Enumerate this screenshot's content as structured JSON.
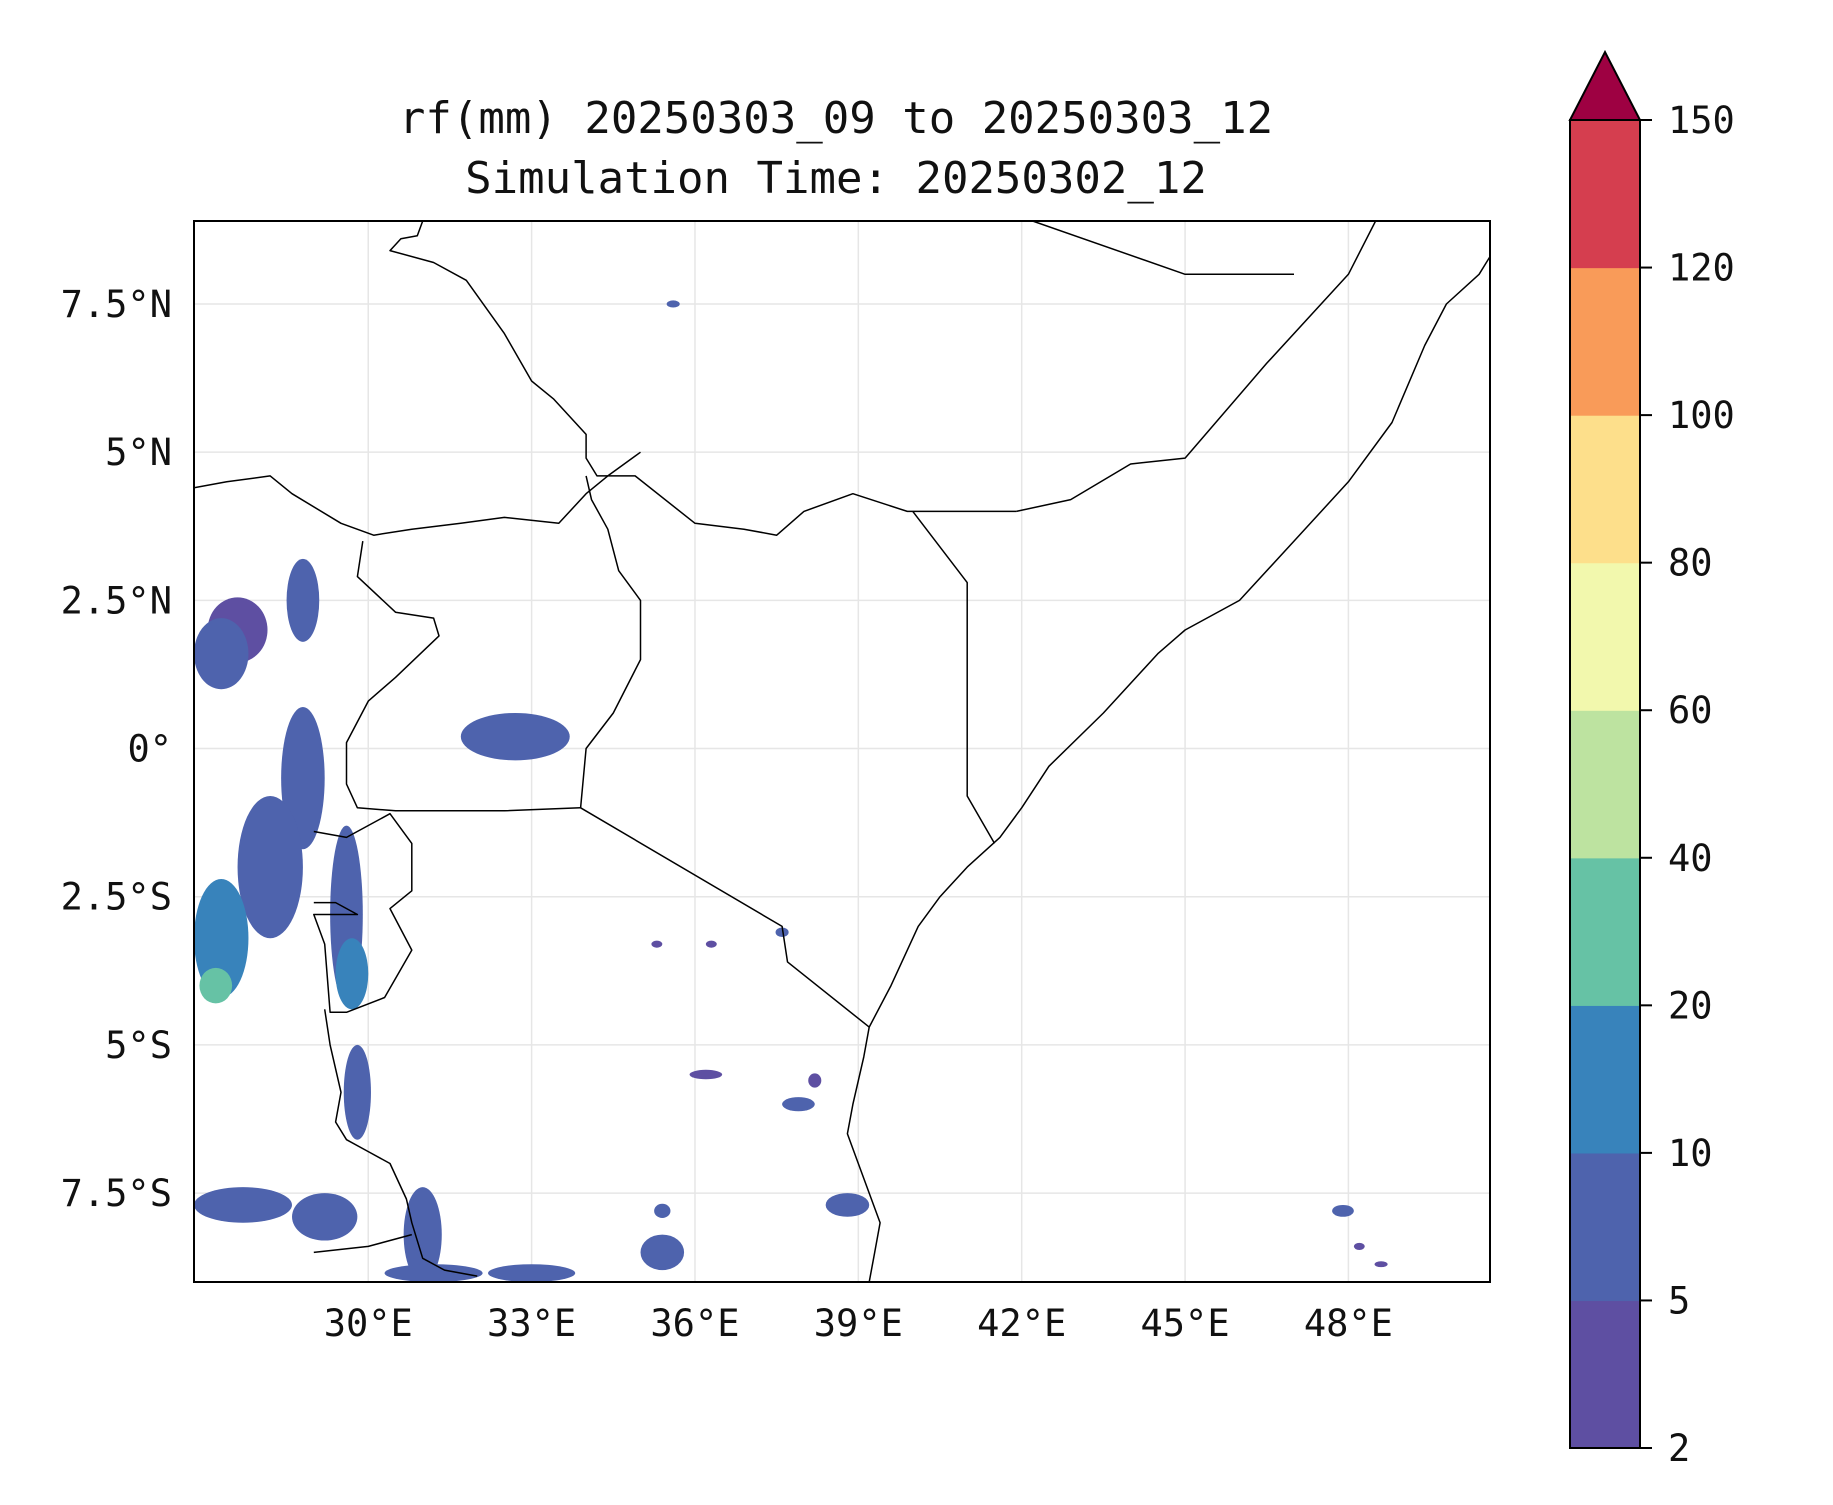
{
  "title": {
    "line1": "rf(mm) 20250303_09 to 20250303_12",
    "line2": "Simulation Time: 20250302_12"
  },
  "map": {
    "lon_range": [
      26.8,
      50.6
    ],
    "lat_range": [
      -9.0,
      8.9
    ],
    "grid": true,
    "x_ticks": [
      {
        "value": 30,
        "label": "30°E"
      },
      {
        "value": 33,
        "label": "33°E"
      },
      {
        "value": 36,
        "label": "36°E"
      },
      {
        "value": 39,
        "label": "39°E"
      },
      {
        "value": 42,
        "label": "42°E"
      },
      {
        "value": 45,
        "label": "45°E"
      },
      {
        "value": 48,
        "label": "48°E"
      }
    ],
    "y_ticks": [
      {
        "value": 7.5,
        "label": "7.5°N"
      },
      {
        "value": 5,
        "label": "5°N"
      },
      {
        "value": 2.5,
        "label": "2.5°N"
      },
      {
        "value": 0,
        "label": "0°"
      },
      {
        "value": -2.5,
        "label": "2.5°S"
      },
      {
        "value": -5,
        "label": "5°S"
      },
      {
        "value": -7.5,
        "label": "7.5°S"
      }
    ]
  },
  "colorbar": {
    "extend": "max",
    "extend_color": "#9e0142",
    "bins": [
      {
        "lo": 2,
        "hi": 5,
        "color": "#5e4fa2"
      },
      {
        "lo": 5,
        "hi": 10,
        "color": "#4e63ad"
      },
      {
        "lo": 10,
        "hi": 20,
        "color": "#3883bb"
      },
      {
        "lo": 20,
        "hi": 40,
        "color": "#66c2a5"
      },
      {
        "lo": 40,
        "hi": 60,
        "color": "#bde3a0"
      },
      {
        "lo": 60,
        "hi": 80,
        "color": "#f2f8ad"
      },
      {
        "lo": 80,
        "hi": 100,
        "color": "#fddf8b"
      },
      {
        "lo": 100,
        "hi": 120,
        "color": "#f99b59"
      },
      {
        "lo": 120,
        "hi": 150,
        "color": "#d53e4f"
      }
    ],
    "tick_labels": [
      "2",
      "5",
      "10",
      "20",
      "40",
      "60",
      "80",
      "100",
      "120",
      "150"
    ]
  },
  "borders": [
    {
      "id": "border-sudan-south-sudan",
      "points": [
        [
          31.0,
          8.9
        ],
        [
          30.9,
          8.65
        ],
        [
          30.6,
          8.6
        ],
        [
          30.4,
          8.4
        ],
        [
          31.2,
          8.2
        ],
        [
          31.8,
          7.9
        ],
        [
          32.5,
          7.0
        ],
        [
          33.0,
          6.2
        ],
        [
          33.4,
          5.9
        ],
        [
          33.8,
          5.5
        ],
        [
          34.0,
          5.3
        ],
        [
          34.0,
          4.9
        ],
        [
          34.2,
          4.6
        ],
        [
          34.9,
          4.6
        ],
        [
          36.0,
          3.8
        ],
        [
          36.9,
          3.7
        ],
        [
          37.5,
          3.6
        ],
        [
          38.0,
          4.0
        ],
        [
          38.9,
          4.3
        ],
        [
          39.9,
          4.0
        ],
        [
          40.9,
          4.0
        ],
        [
          41.9,
          4.0
        ]
      ]
    },
    {
      "id": "border-south-sudan-uganda",
      "points": [
        [
          26.8,
          4.4
        ],
        [
          27.4,
          4.5
        ],
        [
          28.2,
          4.6
        ],
        [
          28.6,
          4.3
        ],
        [
          29.5,
          3.8
        ],
        [
          30.1,
          3.6
        ],
        [
          30.8,
          3.7
        ],
        [
          31.7,
          3.8
        ],
        [
          32.5,
          3.9
        ],
        [
          33.5,
          3.8
        ],
        [
          34.0,
          4.3
        ],
        [
          34.4,
          4.6
        ],
        [
          35.0,
          5.0
        ]
      ]
    },
    {
      "id": "border-drc-uganda",
      "points": [
        [
          29.9,
          3.5
        ],
        [
          29.8,
          2.9
        ],
        [
          30.5,
          2.3
        ],
        [
          31.2,
          2.2
        ],
        [
          31.3,
          1.9
        ],
        [
          30.5,
          1.2
        ],
        [
          30.0,
          0.8
        ],
        [
          29.6,
          0.1
        ],
        [
          29.6,
          -0.6
        ],
        [
          29.8,
          -1.0
        ],
        [
          30.5,
          -1.05
        ],
        [
          31.4,
          -1.05
        ],
        [
          32.5,
          -1.05
        ],
        [
          33.9,
          -1.0
        ]
      ]
    },
    {
      "id": "border-uganda-kenya",
      "points": [
        [
          33.9,
          -1.0
        ],
        [
          34.0,
          0.0
        ],
        [
          34.5,
          0.6
        ],
        [
          35.0,
          1.5
        ],
        [
          35.0,
          2.5
        ],
        [
          34.6,
          3.0
        ],
        [
          34.4,
          3.7
        ],
        [
          34.1,
          4.2
        ],
        [
          34.0,
          4.6
        ]
      ]
    },
    {
      "id": "border-kenya-tanzania",
      "points": [
        [
          33.9,
          -1.0
        ],
        [
          37.6,
          -3.0
        ],
        [
          37.7,
          -3.6
        ],
        [
          39.2,
          -4.7
        ]
      ]
    },
    {
      "id": "border-kenya-somalia",
      "points": [
        [
          40.0,
          4.0
        ],
        [
          41.0,
          2.8
        ],
        [
          41.0,
          1.0
        ],
        [
          41.0,
          -0.8
        ],
        [
          41.5,
          -1.6
        ]
      ]
    },
    {
      "id": "border-somalia-ethiopia",
      "points": [
        [
          41.9,
          4.0
        ],
        [
          42.9,
          4.2
        ],
        [
          44.0,
          4.8
        ],
        [
          45.0,
          4.9
        ],
        [
          46.5,
          6.5
        ],
        [
          48.0,
          8.0
        ],
        [
          48.5,
          8.9
        ]
      ]
    },
    {
      "id": "border-ethiopia-somaliland",
      "points": [
        [
          42.2,
          8.9
        ],
        [
          45.0,
          8.0
        ],
        [
          46.0,
          8.0
        ],
        [
          47.0,
          8.0
        ]
      ]
    },
    {
      "id": "border-rwanda-burundi",
      "points": [
        [
          29.0,
          -1.4
        ],
        [
          29.6,
          -1.5
        ],
        [
          30.4,
          -1.1
        ],
        [
          30.8,
          -1.6
        ],
        [
          30.8,
          -2.4
        ],
        [
          30.4,
          -2.7
        ],
        [
          30.8,
          -3.4
        ],
        [
          30.3,
          -4.2
        ],
        [
          29.6,
          -4.45
        ],
        [
          29.3,
          -4.45
        ],
        [
          29.2,
          -3.3
        ],
        [
          29.0,
          -2.8
        ],
        [
          29.4,
          -2.8
        ],
        [
          29.8,
          -2.8
        ],
        [
          29.4,
          -2.6
        ],
        [
          29.0,
          -2.6
        ]
      ]
    },
    {
      "id": "border-lake-tanganyika",
      "points": [
        [
          29.2,
          -4.4
        ],
        [
          29.3,
          -5.0
        ],
        [
          29.5,
          -5.8
        ],
        [
          29.4,
          -6.3
        ],
        [
          29.6,
          -6.6
        ],
        [
          30.0,
          -6.8
        ],
        [
          30.4,
          -7.0
        ],
        [
          30.7,
          -7.6
        ],
        [
          30.8,
          -8.0
        ],
        [
          31.0,
          -8.6
        ],
        [
          31.4,
          -8.8
        ],
        [
          32.0,
          -8.9
        ]
      ]
    },
    {
      "id": "border-tanzania-zambia",
      "points": [
        [
          29.0,
          -8.5
        ],
        [
          30.0,
          -8.4
        ],
        [
          30.8,
          -8.2
        ]
      ]
    },
    {
      "id": "coastline-east",
      "points": [
        [
          39.2,
          -9.0
        ],
        [
          39.3,
          -8.5
        ],
        [
          39.4,
          -8.0
        ],
        [
          39.2,
          -7.5
        ],
        [
          39.0,
          -7.0
        ],
        [
          38.8,
          -6.5
        ],
        [
          38.9,
          -6.0
        ],
        [
          39.1,
          -5.2
        ],
        [
          39.2,
          -4.7
        ],
        [
          39.6,
          -4.0
        ],
        [
          40.1,
          -3.0
        ],
        [
          40.5,
          -2.5
        ],
        [
          41.0,
          -2.0
        ],
        [
          41.6,
          -1.5
        ],
        [
          42.0,
          -1.0
        ],
        [
          42.5,
          -0.3
        ],
        [
          43.5,
          0.6
        ],
        [
          44.5,
          1.6
        ],
        [
          45.0,
          2.0
        ],
        [
          46.0,
          2.5
        ],
        [
          47.0,
          3.5
        ],
        [
          48.0,
          4.5
        ],
        [
          48.8,
          5.5
        ],
        [
          49.4,
          6.8
        ],
        [
          49.8,
          7.5
        ],
        [
          50.4,
          8.0
        ],
        [
          50.6,
          8.3
        ]
      ]
    }
  ],
  "rain_patches": [
    {
      "id": "rain-w-1",
      "lon": 27.6,
      "lat": 2.0,
      "rx": 0.55,
      "ry": 0.55,
      "bin": 0
    },
    {
      "id": "rain-w-2",
      "lon": 28.8,
      "lat": 2.5,
      "rx": 0.3,
      "ry": 0.7,
      "bin": 1
    },
    {
      "id": "rain-w-3",
      "lon": 27.3,
      "lat": 1.6,
      "rx": 0.5,
      "ry": 0.6,
      "bin": 1
    },
    {
      "id": "rain-w-4",
      "lon": 28.8,
      "lat": -0.5,
      "rx": 0.4,
      "ry": 1.2,
      "bin": 1
    },
    {
      "id": "rain-w-5",
      "lon": 28.2,
      "lat": -2.0,
      "rx": 0.6,
      "ry": 1.2,
      "bin": 1
    },
    {
      "id": "rain-w-6",
      "lon": 27.3,
      "lat": -3.2,
      "rx": 0.5,
      "ry": 1.0,
      "bin": 2
    },
    {
      "id": "rain-w-7",
      "lon": 29.6,
      "lat": -2.8,
      "rx": 0.3,
      "ry": 1.5,
      "bin": 1
    },
    {
      "id": "rain-w-8",
      "lon": 29.7,
      "lat": -3.8,
      "rx": 0.3,
      "ry": 0.6,
      "bin": 2
    },
    {
      "id": "rain-w-9",
      "lon": 27.2,
      "lat": -4.0,
      "rx": 0.3,
      "ry": 0.3,
      "bin": 3
    },
    {
      "id": "rain-lake-victoria",
      "lon": 32.7,
      "lat": 0.2,
      "rx": 1.0,
      "ry": 0.4,
      "bin": 1
    },
    {
      "id": "rain-tanganyika-1",
      "lon": 29.8,
      "lat": -5.8,
      "rx": 0.25,
      "ry": 0.8,
      "bin": 1
    },
    {
      "id": "rain-tanganyika-2",
      "lon": 31.0,
      "lat": -8.2,
      "rx": 0.35,
      "ry": 0.8,
      "bin": 1
    },
    {
      "id": "rain-sw-1",
      "lon": 27.7,
      "lat": -7.7,
      "rx": 0.9,
      "ry": 0.3,
      "bin": 1
    },
    {
      "id": "rain-sw-2",
      "lon": 29.2,
      "lat": -7.9,
      "rx": 0.6,
      "ry": 0.4,
      "bin": 1
    },
    {
      "id": "rain-s-1",
      "lon": 31.2,
      "lat": -8.85,
      "rx": 0.9,
      "ry": 0.15,
      "bin": 1
    },
    {
      "id": "rain-s-2",
      "lon": 33.0,
      "lat": -8.85,
      "rx": 0.8,
      "ry": 0.15,
      "bin": 1
    },
    {
      "id": "rain-s-3",
      "lon": 35.4,
      "lat": -8.5,
      "rx": 0.4,
      "ry": 0.3,
      "bin": 1
    },
    {
      "id": "rain-s-4",
      "lon": 35.4,
      "lat": -7.8,
      "rx": 0.15,
      "ry": 0.12,
      "bin": 1
    },
    {
      "id": "rain-s-5",
      "lon": 38.8,
      "lat": -7.7,
      "rx": 0.4,
      "ry": 0.2,
      "bin": 1
    },
    {
      "id": "rain-s-6",
      "lon": 37.9,
      "lat": -6.0,
      "rx": 0.3,
      "ry": 0.12,
      "bin": 1
    },
    {
      "id": "rain-s-7",
      "lon": 36.2,
      "lat": -5.5,
      "rx": 0.3,
      "ry": 0.08,
      "bin": 0
    },
    {
      "id": "rain-e-tz",
      "lon": 38.2,
      "lat": -5.6,
      "rx": 0.12,
      "ry": 0.12,
      "bin": 0
    },
    {
      "id": "rain-kenya-1",
      "lon": 37.6,
      "lat": -3.1,
      "rx": 0.12,
      "ry": 0.08,
      "bin": 1
    },
    {
      "id": "rain-kenya-2",
      "lon": 35.3,
      "lat": -3.3,
      "rx": 0.1,
      "ry": 0.06,
      "bin": 0
    },
    {
      "id": "rain-kenya-3",
      "lon": 36.3,
      "lat": -3.3,
      "rx": 0.1,
      "ry": 0.06,
      "bin": 0
    },
    {
      "id": "rain-ss-1",
      "lon": 35.6,
      "lat": 7.5,
      "rx": 0.12,
      "ry": 0.06,
      "bin": 1
    },
    {
      "id": "rain-somali-sea-1",
      "lon": 47.9,
      "lat": -7.8,
      "rx": 0.2,
      "ry": 0.1,
      "bin": 1
    },
    {
      "id": "rain-somali-sea-2",
      "lon": 48.2,
      "lat": -8.4,
      "rx": 0.1,
      "ry": 0.06,
      "bin": 0
    },
    {
      "id": "rain-somali-sea-3",
      "lon": 48.6,
      "lat": -8.7,
      "rx": 0.12,
      "ry": 0.05,
      "bin": 0
    }
  ]
}
